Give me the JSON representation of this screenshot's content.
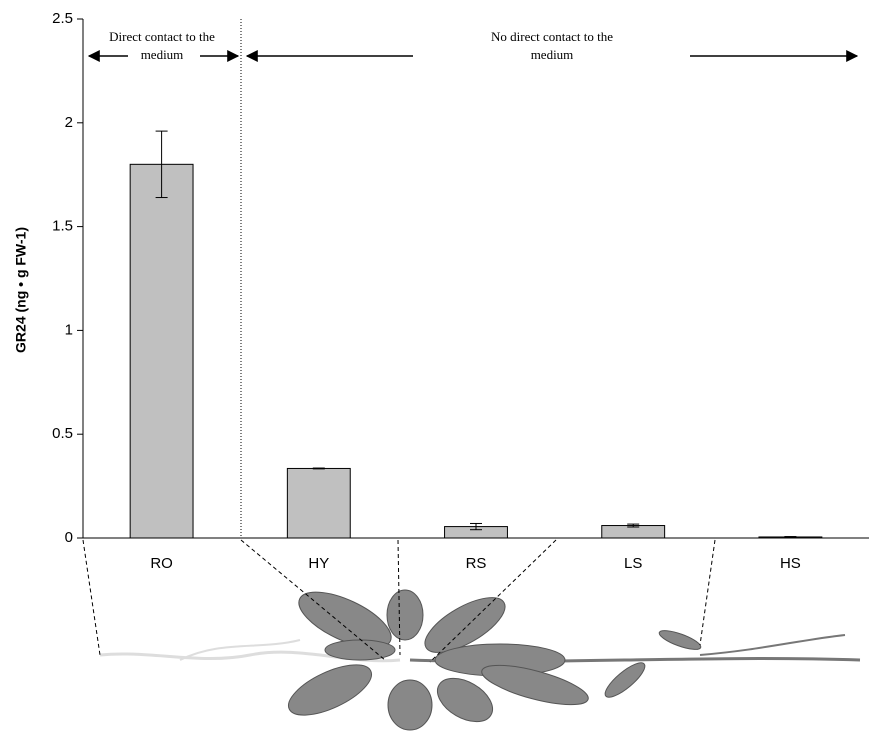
{
  "chart_data": {
    "type": "bar",
    "ylabel": "GR24 (ng • g FW-1)",
    "categories": [
      "RO",
      "HY",
      "RS",
      "LS",
      "HS"
    ],
    "values": [
      1.8,
      0.335,
      0.055,
      0.06,
      0.005
    ],
    "errors": [
      0.16,
      0.002,
      0.015,
      0.007,
      0.002
    ],
    "color": "#c0c0c0",
    "ylim": [
      0,
      2.5
    ],
    "yticks": [
      0,
      0.5,
      1,
      1.5,
      2,
      2.5
    ],
    "annotations": [
      {
        "lines": [
          "Direct contact to the",
          "medium"
        ]
      },
      {
        "lines": [
          "No direct contact to the",
          "medium"
        ]
      }
    ]
  }
}
